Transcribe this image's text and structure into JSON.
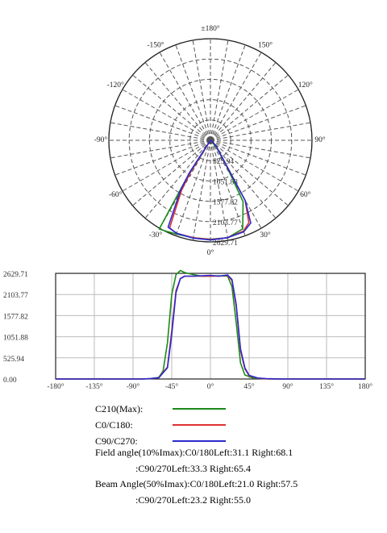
{
  "chart_data": [
    {
      "type": "polar",
      "angle_labels": [
        "±180°",
        "150°",
        "120°",
        "90°",
        "60°",
        "30°",
        "0°",
        "-30°",
        "-60°",
        "-90°",
        "-120°",
        "-150°"
      ],
      "radial_tick_labels": [
        "525.94",
        "1051.88",
        "1577.82",
        "2103.77",
        "2629.71"
      ],
      "series": [
        {
          "name": "C210(Max)",
          "color": "#1a8a1a",
          "points": [
            [
              -32,
              1200
            ],
            [
              -30,
              2650
            ],
            [
              -26,
              2620
            ],
            [
              -20,
              2580
            ],
            [
              -10,
              2560
            ],
            [
              0,
              2560
            ],
            [
              10,
              2560
            ],
            [
              20,
              2440
            ],
            [
              28,
              1800
            ],
            [
              32,
              800
            ],
            [
              38,
              300
            ],
            [
              60,
              30
            ]
          ]
        },
        {
          "name": "C0/C180",
          "color": "#e03030",
          "points": [
            [
              -32,
              1000
            ],
            [
              -30,
              1500
            ],
            [
              -25,
              2500
            ],
            [
              -20,
              2560
            ],
            [
              -10,
              2560
            ],
            [
              0,
              2570
            ],
            [
              10,
              2560
            ],
            [
              20,
              2500
            ],
            [
              25,
              2350
            ],
            [
              30,
              1800
            ],
            [
              33,
              700
            ],
            [
              45,
              200
            ],
            [
              60,
              40
            ]
          ]
        },
        {
          "name": "C90/C270",
          "color": "#2a2ad0",
          "points": [
            [
              -33,
              1000
            ],
            [
              -31,
              1500
            ],
            [
              -26,
              2500
            ],
            [
              -20,
              2560
            ],
            [
              -10,
              2570
            ],
            [
              0,
              2580
            ],
            [
              10,
              2560
            ],
            [
              20,
              2520
            ],
            [
              26,
              2380
            ],
            [
              30,
              1800
            ],
            [
              33,
              700
            ],
            [
              45,
              200
            ],
            [
              60,
              40
            ]
          ]
        }
      ]
    },
    {
      "type": "line",
      "x_tick_labels": [
        "-180°",
        "-135°",
        "-90°",
        "-45°",
        "0°",
        "45°",
        "90°",
        "135°",
        "180°"
      ],
      "y_tick_labels": [
        "2629.71",
        "2103.77",
        "1577.82",
        "1051.88",
        "525.94",
        "0.00"
      ],
      "xlim": [
        -180,
        180
      ],
      "ylim": [
        0,
        2629.71
      ],
      "series": [
        {
          "name": "C210(Max)",
          "color": "#1a8a1a",
          "points": [
            [
              -180,
              0
            ],
            [
              -80,
              0
            ],
            [
              -70,
              8
            ],
            [
              -60,
              40
            ],
            [
              -55,
              200
            ],
            [
              -50,
              900
            ],
            [
              -45,
              2100
            ],
            [
              -40,
              2600
            ],
            [
              -35,
              2700
            ],
            [
              -30,
              2650
            ],
            [
              -20,
              2600
            ],
            [
              -10,
              2560
            ],
            [
              0,
              2560
            ],
            [
              10,
              2570
            ],
            [
              20,
              2560
            ],
            [
              25,
              2300
            ],
            [
              30,
              1400
            ],
            [
              35,
              400
            ],
            [
              40,
              100
            ],
            [
              50,
              20
            ],
            [
              70,
              0
            ],
            [
              180,
              0
            ]
          ]
        },
        {
          "name": "C0/C180",
          "color": "#e03030",
          "points": [
            [
              -180,
              0
            ],
            [
              -80,
              0
            ],
            [
              -70,
              8
            ],
            [
              -60,
              30
            ],
            [
              -50,
              300
            ],
            [
              -45,
              1200
            ],
            [
              -40,
              2200
            ],
            [
              -35,
              2500
            ],
            [
              -30,
              2560
            ],
            [
              -20,
              2560
            ],
            [
              -10,
              2560
            ],
            [
              0,
              2560
            ],
            [
              10,
              2560
            ],
            [
              20,
              2580
            ],
            [
              25,
              2450
            ],
            [
              30,
              1800
            ],
            [
              35,
              700
            ],
            [
              40,
              250
            ],
            [
              45,
              80
            ],
            [
              55,
              20
            ],
            [
              65,
              5
            ],
            [
              80,
              0
            ],
            [
              180,
              0
            ]
          ]
        },
        {
          "name": "C90/C270",
          "color": "#2a2ad0",
          "points": [
            [
              -180,
              0
            ],
            [
              -80,
              0
            ],
            [
              -70,
              8
            ],
            [
              -60,
              30
            ],
            [
              -50,
              280
            ],
            [
              -45,
              1100
            ],
            [
              -40,
              2150
            ],
            [
              -35,
              2500
            ],
            [
              -30,
              2560
            ],
            [
              -20,
              2560
            ],
            [
              -10,
              2570
            ],
            [
              0,
              2580
            ],
            [
              10,
              2560
            ],
            [
              20,
              2590
            ],
            [
              25,
              2480
            ],
            [
              30,
              1850
            ],
            [
              35,
              750
            ],
            [
              40,
              280
            ],
            [
              45,
              90
            ],
            [
              55,
              25
            ],
            [
              65,
              10
            ],
            [
              75,
              5
            ],
            [
              80,
              0
            ],
            [
              180,
              0
            ]
          ]
        }
      ]
    }
  ],
  "legend": [
    {
      "label": "C210(Max):",
      "color": "#1a8a1a"
    },
    {
      "label": "C0/C180:",
      "color": "#e03030"
    },
    {
      "label": "C90/C270:",
      "color": "#2a2ad0"
    }
  ],
  "notes": {
    "field_c0": "Field angle(10%Imax):C0/180Left:31.1 Right:68.1",
    "field_c90": ":C90/270Left:33.3 Right:65.4",
    "beam_c0": "Beam Angle(50%Imax):C0/180Left:21.0 Right:57.5",
    "beam_c90": ":C90/270Left:23.2 Right:55.0"
  }
}
